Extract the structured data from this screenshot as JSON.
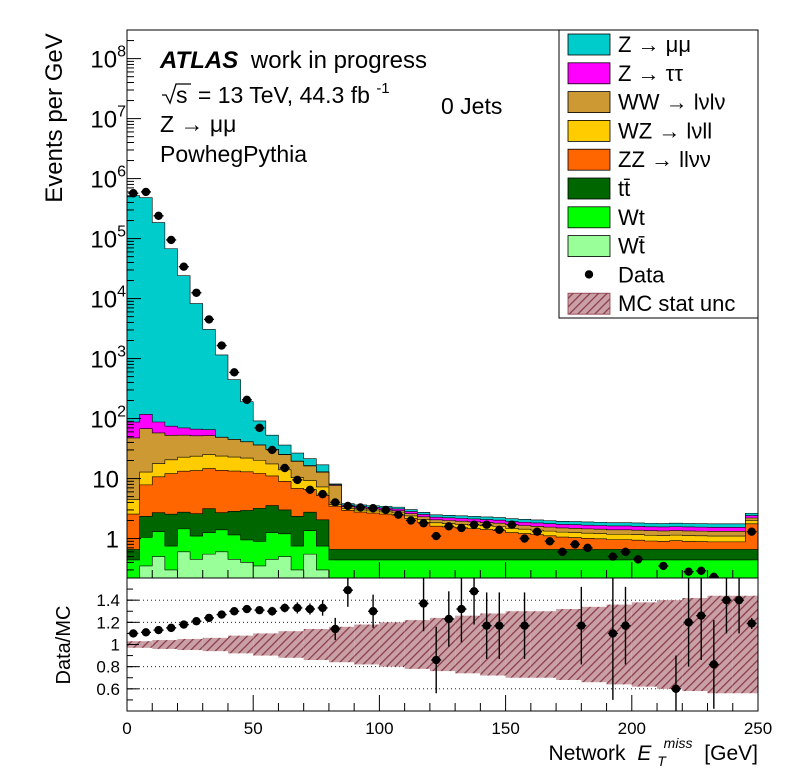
{
  "chart_data": [
    {
      "type": "area",
      "panel": "main",
      "ylabel": "Events per GeV",
      "yscale": "log",
      "ylim": [
        0.22,
        300000000
      ],
      "xlim": [
        0,
        250
      ],
      "bin_width": 5,
      "bin_lo": [
        0,
        5,
        10,
        15,
        20,
        25,
        30,
        35,
        40,
        45,
        50,
        55,
        60,
        65,
        70,
        75,
        80,
        85,
        90,
        95,
        100,
        105,
        110,
        115,
        120,
        125,
        130,
        135,
        140,
        145,
        150,
        155,
        160,
        165,
        170,
        175,
        180,
        185,
        190,
        195,
        200,
        205,
        210,
        215,
        220,
        225,
        230,
        235,
        240,
        245
      ],
      "y_ticks": [
        1,
        10,
        100,
        1000,
        10000,
        100000,
        1000000,
        10000000,
        100000000
      ],
      "y_tick_labels": [
        {
          "base": "1",
          "exp": ""
        },
        {
          "base": "10",
          "exp": ""
        },
        {
          "base": "10",
          "exp": "2"
        },
        {
          "base": "10",
          "exp": "3"
        },
        {
          "base": "10",
          "exp": "4"
        },
        {
          "base": "10",
          "exp": "5"
        },
        {
          "base": "10",
          "exp": "6"
        },
        {
          "base": "10",
          "exp": "7"
        },
        {
          "base": "10",
          "exp": "8"
        }
      ],
      "stack_order": [
        "Wtbar",
        "Wt",
        "ttbar",
        "ZZ",
        "WZ",
        "WW",
        "Ztautau",
        "Zmumu"
      ],
      "series": [
        {
          "key": "Wtbar",
          "name": "Wt̄",
          "color": "#99ff99",
          "values": [
            0.22,
            0.35,
            0.5,
            0.3,
            0.6,
            0.45,
            0.55,
            0.6,
            0.45,
            0.4,
            0.35,
            0.45,
            0.5,
            0.3,
            0.55,
            0.3,
            0.22,
            0.22,
            0.22,
            0.22,
            0.22,
            0.22,
            0.22,
            0.22,
            0.22,
            0.22,
            0.22,
            0.22,
            0.22,
            0.22,
            0.22,
            0.22,
            0.22,
            0.22,
            0.22,
            0.22,
            0.22,
            0.22,
            0.22,
            0.22,
            0.22,
            0.22,
            0.22,
            0.22,
            0.22,
            0.22,
            0.22,
            0.22,
            0.22,
            0.22
          ]
        },
        {
          "key": "Wt",
          "name": "Wt",
          "color": "#00ff00",
          "values": [
            0.22,
            0.7,
            0.8,
            0.45,
            0.85,
            0.65,
            0.7,
            0.8,
            0.7,
            0.55,
            0.55,
            0.8,
            0.7,
            0.45,
            0.8,
            0.45,
            0.22,
            0.22,
            0.22,
            0.22,
            0.22,
            0.22,
            0.22,
            0.22,
            0.22,
            0.22,
            0.22,
            0.22,
            0.22,
            0.22,
            0.22,
            0.22,
            0.22,
            0.22,
            0.22,
            0.22,
            0.22,
            0.22,
            0.22,
            0.22,
            0.22,
            0.22,
            0.22,
            0.22,
            0.22,
            0.22,
            0.22,
            0.22,
            0.22,
            0.22
          ]
        },
        {
          "key": "ttbar",
          "name": "tt̄",
          "color": "#006600",
          "values": [
            0.22,
            1.3,
            1.4,
            1.8,
            1.3,
            1.5,
            1.9,
            1.3,
            1.7,
            2.0,
            2.3,
            2.3,
            1.8,
            1.6,
            1.4,
            1.3,
            0.22,
            0.22,
            0.22,
            0.22,
            0.22,
            0.22,
            0.22,
            0.22,
            0.22,
            0.22,
            0.22,
            0.22,
            0.22,
            0.22,
            0.22,
            0.22,
            0.22,
            0.22,
            0.22,
            0.22,
            0.22,
            0.22,
            0.22,
            0.22,
            0.22,
            0.22,
            0.22,
            0.22,
            0.22,
            0.22,
            0.22,
            0.22,
            0.22,
            0.22
          ]
        },
        {
          "key": "ZZ",
          "name": "ZZ → llνν",
          "color": "#ff6600",
          "values": [
            1.9,
            5.5,
            8.0,
            9.5,
            10.5,
            11.0,
            11.5,
            11.0,
            10.5,
            10.0,
            9.0,
            7.5,
            6.0,
            4.5,
            3.8,
            3.2,
            2.8,
            2.3,
            2.1,
            2.0,
            1.9,
            1.8,
            1.5,
            1.2,
            0.95,
            0.9,
            0.85,
            0.8,
            0.75,
            0.7,
            0.6,
            0.55,
            0.5,
            0.45,
            0.4,
            0.38,
            0.35,
            0.33,
            0.3,
            0.3,
            0.28,
            0.25,
            0.24,
            0.26,
            0.24,
            0.23,
            0.22,
            0.22,
            0.22,
            1.1
          ]
        },
        {
          "key": "WZ",
          "name": "WZ → lνll",
          "color": "#ffcc00",
          "values": [
            1.9,
            5.0,
            7.0,
            8.5,
            9.5,
            10.0,
            10.5,
            10.0,
            9.5,
            9.0,
            8.0,
            6.5,
            5.0,
            3.5,
            2.7,
            2.0,
            0.22,
            0.22,
            0.22,
            0.22,
            0.22,
            0.22,
            0.22,
            0.22,
            0.22,
            0.22,
            0.22,
            0.22,
            0.22,
            0.22,
            0.22,
            0.22,
            0.22,
            0.22,
            0.22,
            0.22,
            0.22,
            0.22,
            0.22,
            0.22,
            0.22,
            0.22,
            0.22,
            0.22,
            0.22,
            0.22,
            0.22,
            0.22,
            0.22,
            0.22
          ]
        },
        {
          "key": "WW",
          "name": "WW → lνlν",
          "color": "#cc9933",
          "values": [
            43,
            55,
            40,
            32,
            30,
            28,
            27,
            25,
            22,
            19,
            16,
            13,
            11,
            9.0,
            7.0,
            5.5,
            4.0,
            0.22,
            0.22,
            0.22,
            0.22,
            0.22,
            0.22,
            0.22,
            0.22,
            0.22,
            0.22,
            0.22,
            0.22,
            0.22,
            0.22,
            0.22,
            0.22,
            0.22,
            0.22,
            0.22,
            0.22,
            0.22,
            0.22,
            0.22,
            0.22,
            0.22,
            0.22,
            0.22,
            0.22,
            0.22,
            0.22,
            0.22,
            0.22,
            0.22
          ]
        },
        {
          "key": "Ztautau",
          "name": "Z → ττ",
          "color": "#ff00ff",
          "values": [
            40,
            50,
            30,
            22,
            17,
            15,
            13,
            0.22,
            0.22,
            0.22,
            0.22,
            0.22,
            0.22,
            0.22,
            0.22,
            0.22,
            0.22,
            0.22,
            0.22,
            0.22,
            0.22,
            0.22,
            0.22,
            0.22,
            0.22,
            0.22,
            0.22,
            0.22,
            0.22,
            0.22,
            0.22,
            0.22,
            0.22,
            0.22,
            0.22,
            0.22,
            0.22,
            0.22,
            0.22,
            0.22,
            0.22,
            0.22,
            0.22,
            0.22,
            0.22,
            0.22,
            0.22,
            0.22,
            0.22,
            0.22
          ]
        },
        {
          "key": "Zmumu",
          "name": "Z → μμ",
          "color": "#00cccc",
          "values": [
            520000,
            480000,
            185000,
            68000,
            24000,
            8200,
            3000,
            1100,
            400,
            150,
            55,
            22,
            11,
            7.0,
            5.0,
            4.0,
            0.22,
            0.22,
            0.22,
            0.22,
            0.22,
            0.22,
            0.22,
            0.22,
            0.22,
            0.22,
            0.22,
            0.22,
            0.22,
            0.22,
            0.22,
            0.22,
            0.22,
            0.22,
            0.22,
            0.22,
            0.22,
            0.22,
            0.22,
            0.22,
            0.22,
            0.22,
            0.22,
            0.22,
            0.22,
            0.22,
            0.22,
            0.22,
            0.22,
            0.22
          ]
        }
      ],
      "data_points": {
        "name": "Data",
        "x": [
          2.5,
          7.5,
          12.5,
          17.5,
          22.5,
          27.5,
          32.5,
          37.5,
          42.5,
          47.5,
          52.5,
          57.5,
          62.5,
          67.5,
          72.5,
          77.5,
          82.5,
          87.5,
          92.5,
          97.5,
          102.5,
          107.5,
          112.5,
          117.5,
          122.5,
          127.5,
          132.5,
          137.5,
          142.5,
          147.5,
          152.5,
          157.5,
          162.5,
          167.5,
          172.5,
          177.5,
          182.5,
          192.5,
          197.5,
          202.5,
          212.5,
          222.5,
          227.5,
          232.5,
          247.5
        ],
        "y": [
          570000,
          600000,
          240000,
          95000,
          34000,
          12500,
          4500,
          1650,
          590,
          205,
          70,
          30,
          15,
          9.5,
          6.5,
          5.5,
          4.0,
          3.5,
          3.3,
          3.2,
          3.0,
          2.5,
          2.0,
          1.8,
          1.1,
          1.6,
          1.5,
          1.7,
          1.7,
          1.4,
          1.7,
          1.0,
          1.3,
          0.9,
          0.6,
          0.8,
          0.7,
          0.5,
          0.6,
          0.45,
          0.35,
          0.28,
          0.29,
          0.23,
          1.3
        ]
      },
      "legend_placement": "top-right",
      "legend": [
        {
          "label": "Z → μμ",
          "kind": "fill",
          "color": "#00cccc"
        },
        {
          "label": "Z → ττ",
          "kind": "fill",
          "color": "#ff00ff"
        },
        {
          "label": "WW → lνlν",
          "kind": "fill",
          "color": "#cc9933"
        },
        {
          "label": "WZ → lνll",
          "kind": "fill",
          "color": "#ffcc00"
        },
        {
          "label": "ZZ → llνν",
          "kind": "fill",
          "color": "#ff6600"
        },
        {
          "label": "tt̄",
          "kind": "fill",
          "color": "#006600"
        },
        {
          "label": "Wt",
          "kind": "fill",
          "color": "#00ff00"
        },
        {
          "label": "Wt̄",
          "kind": "fill",
          "color": "#99ff99"
        },
        {
          "label": "Data",
          "kind": "marker",
          "color": "#000000"
        },
        {
          "label": "MC stat unc",
          "kind": "hatch",
          "color": "#8b3a46"
        }
      ],
      "annotations": {
        "atlas": "ATLAS",
        "status": "work in progress",
        "energy_sqrt": "s",
        "energy_text": "= 13 TeV, 44.3 fb",
        "energy_exp": "-1",
        "process": "Z → μμ",
        "generator": "PowhegPythia",
        "category": "0 Jets"
      }
    },
    {
      "type": "scatter",
      "panel": "ratio",
      "ylabel": "Data/MC",
      "xlabel_prefix": "Network",
      "xlabel_var": "E",
      "xlabel_sub": "T",
      "xlabel_sup": "miss",
      "xlabel_unit": "[GeV]",
      "xlim": [
        0,
        250
      ],
      "ylim": [
        0.4,
        1.6
      ],
      "y_ticks": [
        0.6,
        0.8,
        1,
        1.2,
        1.4
      ],
      "y_tick_labels": [
        "0.6",
        "0.8",
        "1",
        "1.2",
        "1.4"
      ],
      "x_ticks": [
        0,
        50,
        100,
        150,
        200,
        250
      ],
      "x_tick_labels": [
        "0",
        "50",
        "100",
        "150",
        "200",
        "250"
      ],
      "grid": "horizontal dotted",
      "points": {
        "x": [
          2.5,
          7.5,
          12.5,
          17.5,
          22.5,
          27.5,
          32.5,
          37.5,
          42.5,
          47.5,
          52.5,
          57.5,
          62.5,
          67.5,
          72.5,
          77.5,
          82.5,
          87.5,
          97.5,
          117.5,
          122.5,
          127.5,
          132.5,
          137.5,
          142.5,
          147.5,
          157.5,
          180,
          192.5,
          197.5,
          217.5,
          222.5,
          227.5,
          232.5,
          237.5,
          242.5,
          247.5
        ],
        "y": [
          1.1,
          1.11,
          1.13,
          1.15,
          1.18,
          1.21,
          1.24,
          1.27,
          1.3,
          1.32,
          1.31,
          1.3,
          1.33,
          1.33,
          1.32,
          1.33,
          1.14,
          1.49,
          1.3,
          1.37,
          0.86,
          1.23,
          1.32,
          1.48,
          1.17,
          1.17,
          1.17,
          1.17,
          1.1,
          1.17,
          0.6,
          1.2,
          1.26,
          0.82,
          1.4,
          1.4,
          1.19
        ],
        "err": [
          0.01,
          0.01,
          0.01,
          0.01,
          0.01,
          0.01,
          0.01,
          0.015,
          0.02,
          0.025,
          0.03,
          0.04,
          0.04,
          0.05,
          0.05,
          0.07,
          0.1,
          0.15,
          0.15,
          0.25,
          0.3,
          0.25,
          0.3,
          0.3,
          0.3,
          0.3,
          0.3,
          0.35,
          0.6,
          0.35,
          0.3,
          0.4,
          0.4,
          0.4,
          0.3,
          0.3,
          0.05
        ]
      },
      "mc_unc_band": {
        "x_edges": [
          0,
          10,
          20,
          30,
          40,
          50,
          60,
          70,
          80,
          90,
          100,
          110,
          120,
          130,
          140,
          150,
          160,
          170,
          180,
          190,
          200,
          210,
          220,
          230,
          240,
          250
        ],
        "half_width": [
          0.03,
          0.04,
          0.05,
          0.06,
          0.08,
          0.1,
          0.12,
          0.14,
          0.16,
          0.18,
          0.2,
          0.22,
          0.24,
          0.26,
          0.28,
          0.3,
          0.3,
          0.32,
          0.34,
          0.36,
          0.38,
          0.4,
          0.42,
          0.44,
          0.44
        ]
      }
    }
  ]
}
